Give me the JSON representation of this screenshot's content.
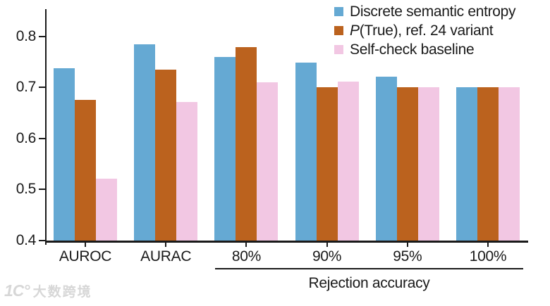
{
  "chart_data": {
    "type": "bar",
    "categories": [
      "AUROC",
      "AURAC",
      "80%",
      "90%",
      "95%",
      "100%"
    ],
    "series": [
      {
        "name": "Discrete semantic entropy",
        "color": "#65a9d3",
        "values": [
          0.737,
          0.785,
          0.76,
          0.749,
          0.721,
          0.7
        ]
      },
      {
        "name": "P(True), ref. 24 variant",
        "color": "#bb621e",
        "values": [
          0.675,
          0.735,
          0.779,
          0.701,
          0.7,
          0.7
        ]
      },
      {
        "name": "Self-check baseline",
        "color": "#f2c7e3",
        "values": [
          0.521,
          0.671,
          0.71,
          0.711,
          0.7,
          0.7
        ]
      }
    ],
    "title": "",
    "xlabel": "Rejection accuracy",
    "xlabel_span_categories": [
      "80%",
      "90%",
      "95%",
      "100%"
    ],
    "ylabel": "",
    "ylim": [
      0.4,
      0.85
    ],
    "yticks": [
      "0.4",
      "0.5",
      "0.6",
      "0.7",
      "0.8"
    ],
    "grid": false,
    "legend_position": "top-right",
    "axis_color": "#1a1a1a"
  },
  "legend": {
    "items": [
      {
        "italic": "",
        "label": "Discrete semantic entropy",
        "color": "#65a9d3"
      },
      {
        "italic": "P",
        "label": "(True), ref. 24 variant",
        "color": "#bb621e"
      },
      {
        "italic": "",
        "label": "Self-check baseline",
        "color": "#f2c7e3"
      }
    ]
  },
  "watermark": {
    "logo": "1C°",
    "brand": "大数跨境"
  }
}
